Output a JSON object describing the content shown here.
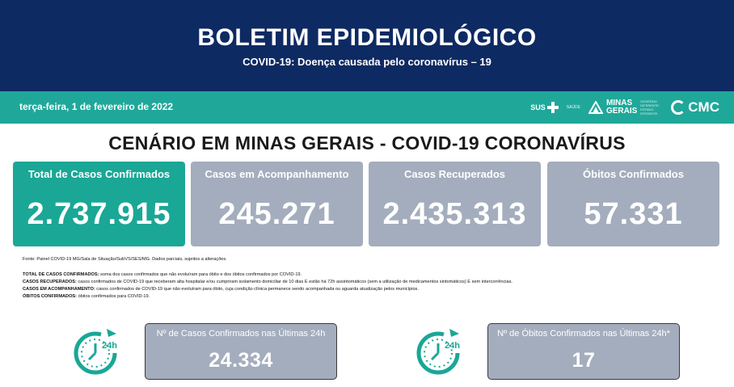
{
  "header": {
    "title": "BOLETIM EPIDEMIOLÓGICO",
    "subtitle": "COVID-19: Doença causada pelo coronavírus – 19"
  },
  "datebar": {
    "date": "terça-feira, 1 de fevereiro de 2022",
    "logos": {
      "sus": "SUS",
      "small": "SAÚDE",
      "mg_line1": "MINAS",
      "mg_line2": "GERAIS",
      "mg_small": "GOVERNO DIFERENTE. ESTADO EFICIENTE.",
      "cmc": "CMC"
    }
  },
  "section_title": "CENÁRIO EM MINAS GERAIS - COVID-19 CORONAVÍRUS",
  "cards": [
    {
      "label": "Total de Casos Confirmados",
      "value": "2.737.915"
    },
    {
      "label": "Casos em Acompanhamento",
      "value": "245.271"
    },
    {
      "label": "Casos Recuperados",
      "value": "2.435.313"
    },
    {
      "label": "Óbitos Confirmados",
      "value": "57.331"
    }
  ],
  "notes": {
    "source": "Fonte: Painel COVID-19 MG/Sala de Situação/SubVS/SES/MG. Dados parciais, sujeitos a alterações.",
    "definitions": [
      {
        "term": "TOTAL DE CASOS CONFIRMADOS:",
        "text": " soma dos casos confirmados que não evoluíram para óbito e dos óbitos confirmados por COVID-19."
      },
      {
        "term": "CASOS RECUPERADOS:",
        "text": " casos confirmados de COVID-19 que receberam alta hospitalar e/ou cumpriram isolamento domiciliar de 10 dias E estão há 72h assintomáticos (sem a utilização de medicamentos sintomáticos) E sem intercorrências."
      },
      {
        "term": "CASOS EM ACOMPANHAMENTO:",
        "text": " casos confirmados de COVID-19 que não evoluíram para óbito, cuja condição clínica permanece sendo acompanhada ou aguarda atualização pelos municípios."
      },
      {
        "term": "ÓBITOS CONFIRMADOS:",
        "text": " óbitos confirmados para COVID-19."
      }
    ]
  },
  "last24": {
    "clock_label": "24h",
    "cases": {
      "label": "Nº de Casos Confirmados nas Últimas 24h",
      "value": "24.334"
    },
    "deaths": {
      "label": "Nº de Óbitos Confirmados nas Últimas 24h*",
      "value": "17"
    }
  },
  "colors": {
    "navy": "#0e2a63",
    "teal": "#1aa796",
    "grey": "#a4adbd"
  }
}
